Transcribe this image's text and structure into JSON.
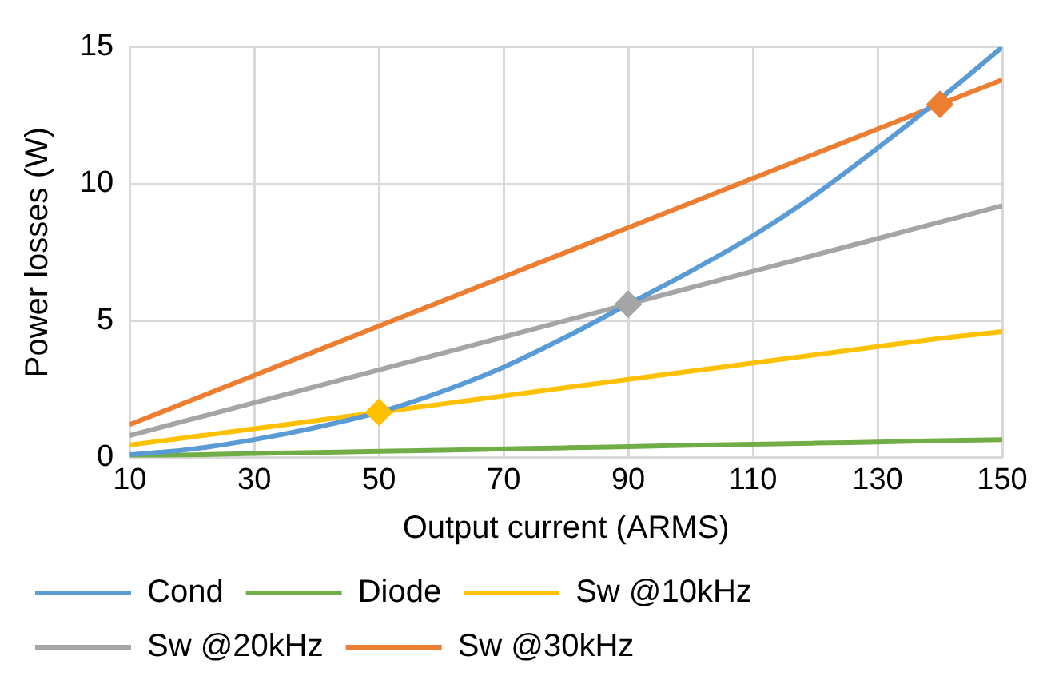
{
  "chart_data": {
    "type": "line",
    "xlabel": "Output current (ARMS)",
    "ylabel": "Power losses (W)",
    "x": [
      10,
      20,
      30,
      40,
      50,
      60,
      70,
      80,
      90,
      100,
      110,
      120,
      130,
      140,
      150
    ],
    "xlim": [
      10,
      150
    ],
    "xticks": [
      10,
      30,
      50,
      70,
      90,
      110,
      130,
      150
    ],
    "ylim": [
      0,
      15
    ],
    "yticks": [
      0,
      5,
      10,
      15
    ],
    "grid": true,
    "legend": "bottom",
    "marker": "none",
    "line_style": "solid",
    "series": [
      {
        "name": "Cond",
        "color": "#5b9bd5",
        "values": [
          0.1,
          0.3,
          0.65,
          1.1,
          1.65,
          2.4,
          3.3,
          4.4,
          5.6,
          6.8,
          8.1,
          9.6,
          11.3,
          13.1,
          15
        ]
      },
      {
        "name": "Diode",
        "color": "#70ad47",
        "values": [
          0.05,
          0.09,
          0.14,
          0.18,
          0.22,
          0.26,
          0.31,
          0.35,
          0.39,
          0.44,
          0.48,
          0.52,
          0.56,
          0.61,
          0.65
        ]
      },
      {
        "name": "Sw @10kHz",
        "color": "#ffc000",
        "values": [
          0.45,
          0.75,
          1.05,
          1.35,
          1.65,
          1.95,
          2.25,
          2.55,
          2.85,
          3.15,
          3.45,
          3.75,
          4.05,
          4.35,
          4.6
        ]
      },
      {
        "name": "Sw @20kHz",
        "color": "#a5a5a5",
        "values": [
          0.8,
          1.4,
          2.0,
          2.6,
          3.2,
          3.8,
          4.4,
          5.0,
          5.6,
          6.2,
          6.8,
          7.4,
          8.0,
          8.6,
          9.2
        ]
      },
      {
        "name": "Sw @30kHz",
        "color": "#ed7d31",
        "values": [
          1.2,
          2.1,
          3.0,
          3.9,
          4.8,
          5.7,
          6.6,
          7.5,
          8.4,
          9.3,
          10.2,
          11.1,
          12.0,
          12.9,
          13.8
        ]
      },
      {
        "type": "scatter",
        "marker": "diamond",
        "color": "#ffc000",
        "x": [
          50
        ],
        "values": [
          1.65
        ]
      },
      {
        "type": "scatter",
        "marker": "diamond",
        "color": "#a5a5a5",
        "x": [
          90
        ],
        "values": [
          5.6
        ]
      },
      {
        "type": "scatter",
        "marker": "diamond",
        "color": "#ed7d31",
        "x": [
          140
        ],
        "values": [
          12.9
        ]
      }
    ]
  }
}
